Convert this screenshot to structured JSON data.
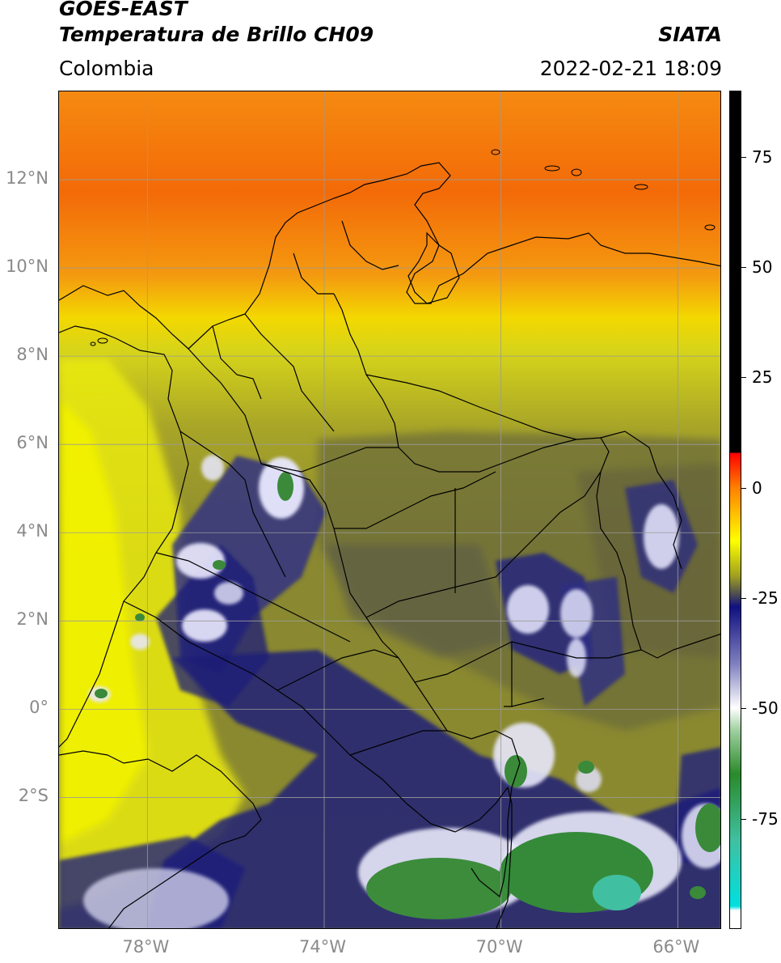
{
  "header": {
    "satellite": "GOES-EAST",
    "product": "Temperatura de Brillo CH09",
    "region": "Colombia",
    "agency": "SIATA",
    "datetime": "2022-02-21 18:09"
  },
  "map": {
    "lat_range": [
      -5.0,
      14.0
    ],
    "lon_range": [
      -80.0,
      -65.0
    ],
    "lat_ticks": [
      {
        "value": 12,
        "label": "12°N"
      },
      {
        "value": 10,
        "label": "10°N"
      },
      {
        "value": 8,
        "label": "8°N"
      },
      {
        "value": 6,
        "label": "6°N"
      },
      {
        "value": 4,
        "label": "4°N"
      },
      {
        "value": 2,
        "label": "2°N"
      },
      {
        "value": 0,
        "label": "0°"
      },
      {
        "value": -2,
        "label": "2°S"
      }
    ],
    "lon_ticks": [
      {
        "value": -78,
        "label": "78°W"
      },
      {
        "value": -74,
        "label": "74°W"
      },
      {
        "value": -70,
        "label": "70°W"
      },
      {
        "value": -66,
        "label": "66°W"
      }
    ],
    "gridlines": true,
    "colors": {
      "warm_band": "#f47a08",
      "yellow_band": "#f2f200",
      "olive": "#7f7f2a",
      "deep_blue": "#1a1a7a",
      "cloud_white": "#eeeeff",
      "cloud_green": "#3a8a3a",
      "coast": "#000000"
    }
  },
  "colorbar": {
    "range": [
      -100,
      90
    ],
    "ticks": [
      {
        "value": 75,
        "label": "75"
      },
      {
        "value": 50,
        "label": "50"
      },
      {
        "value": 25,
        "label": "25"
      },
      {
        "value": 0,
        "label": "0"
      },
      {
        "value": -25,
        "label": "-25"
      },
      {
        "value": -50,
        "label": "-50"
      },
      {
        "value": -75,
        "label": "-75"
      }
    ],
    "stops": [
      {
        "value": 90,
        "color": "#000000"
      },
      {
        "value": 8,
        "color": "#000000"
      },
      {
        "value": 7.9,
        "color": "#ff0000"
      },
      {
        "value": 0,
        "color": "#ff8000"
      },
      {
        "value": -12,
        "color": "#ffff00"
      },
      {
        "value": -20,
        "color": "#a0a020"
      },
      {
        "value": -24,
        "color": "#505050"
      },
      {
        "value": -27,
        "color": "#101080"
      },
      {
        "value": -40,
        "color": "#8080c0"
      },
      {
        "value": -50,
        "color": "#ffffff"
      },
      {
        "value": -55,
        "color": "#a0d0a0"
      },
      {
        "value": -65,
        "color": "#2a8a2a"
      },
      {
        "value": -80,
        "color": "#40c0a0"
      },
      {
        "value": -95,
        "color": "#00e0e0"
      },
      {
        "value": -96,
        "color": "#ffffff"
      },
      {
        "value": -100,
        "color": "#ffffff"
      }
    ]
  }
}
